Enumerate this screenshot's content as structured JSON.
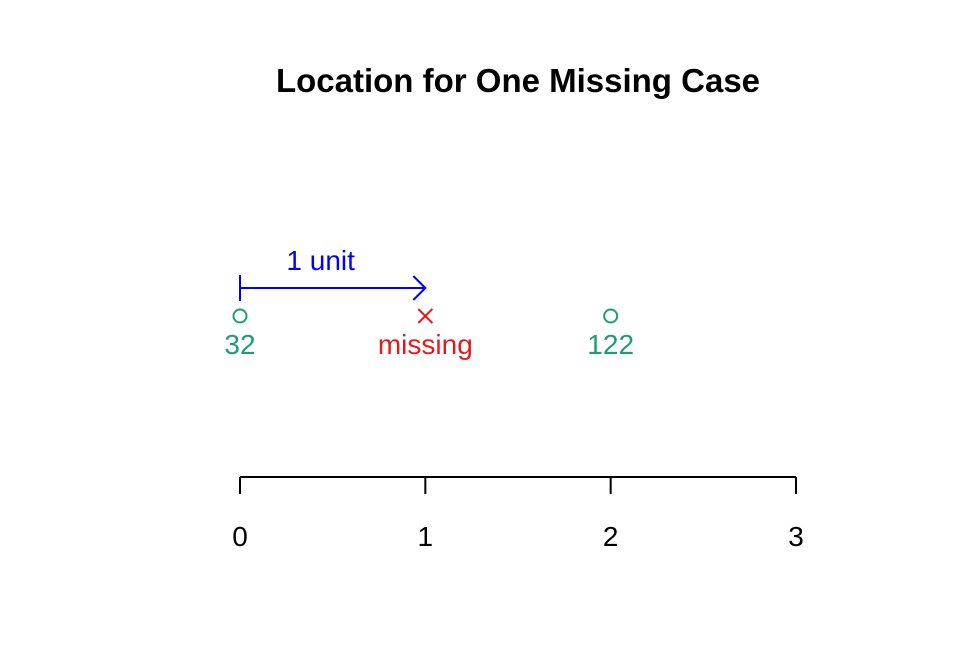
{
  "chart_data": {
    "type": "scatter",
    "title": "Location for One Missing Case",
    "xlabel": "",
    "ylabel": "",
    "xlim": [
      0,
      3
    ],
    "grid": false,
    "x_ticks": [
      "0",
      "1",
      "2",
      "3"
    ],
    "x_tick_values": [
      0,
      1,
      2,
      3
    ],
    "points": [
      {
        "x": 0,
        "label": "32",
        "marker": "circle",
        "color": "#1b9e77"
      },
      {
        "x": 1,
        "label": "missing",
        "marker": "cross",
        "color": "#e31a1c"
      },
      {
        "x": 2,
        "label": "122",
        "marker": "circle",
        "color": "#1b9e77"
      }
    ],
    "annotation": {
      "from": 0,
      "to": 1,
      "label": "1 unit",
      "color": "#0000ff"
    }
  }
}
